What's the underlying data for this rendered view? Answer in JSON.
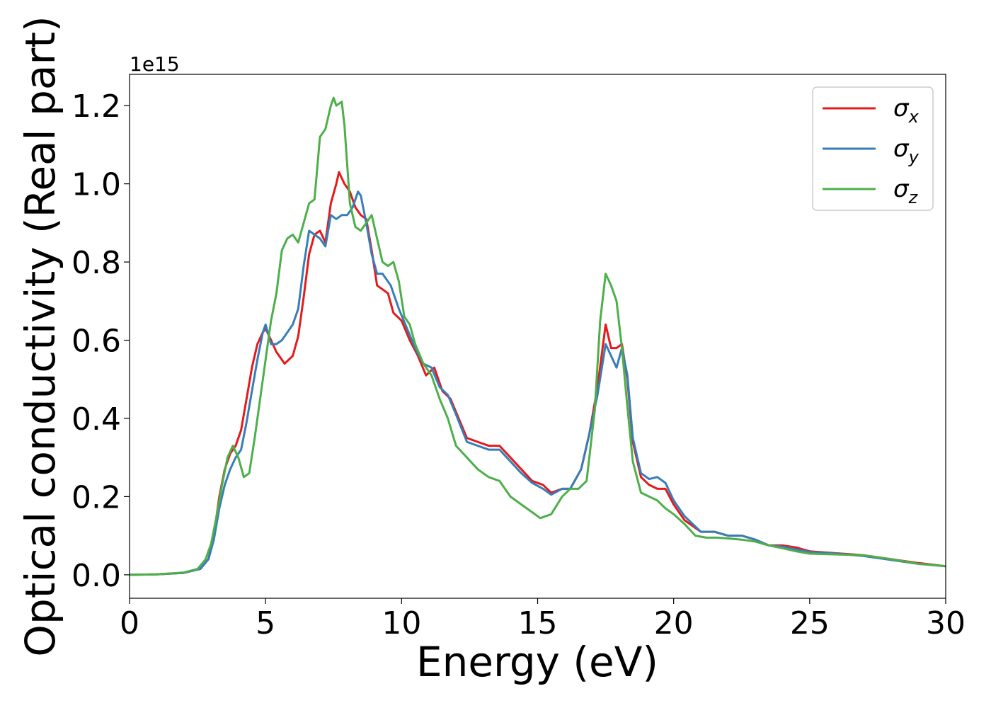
{
  "chart_data": {
    "type": "line",
    "title": "",
    "xlabel": "Energy (eV)",
    "ylabel": "Optical conductivity (Real part)",
    "y_offset_text": "1e15",
    "xlim": [
      0,
      30
    ],
    "ylim": [
      -0.06,
      1.28
    ],
    "x_ticks": [
      0,
      5,
      10,
      15,
      20,
      25,
      30
    ],
    "x_tick_labels": [
      "0",
      "5",
      "10",
      "15",
      "20",
      "25",
      "30"
    ],
    "y_ticks": [
      0.0,
      0.2,
      0.4,
      0.6,
      0.8,
      1.0,
      1.2
    ],
    "y_tick_labels": [
      "0.0",
      "0.2",
      "0.4",
      "0.6",
      "0.8",
      "1.0",
      "1.2"
    ],
    "grid": false,
    "legend_position": "top-right",
    "series": [
      {
        "name": "σx",
        "legend_base": "σ",
        "legend_sub": "x",
        "color": "#e41a1c",
        "points": [
          [
            0,
            0
          ],
          [
            1,
            0.001
          ],
          [
            2,
            0.005
          ],
          [
            2.6,
            0.015
          ],
          [
            2.9,
            0.04
          ],
          [
            3.1,
            0.1
          ],
          [
            3.3,
            0.2
          ],
          [
            3.5,
            0.27
          ],
          [
            3.7,
            0.31
          ],
          [
            3.9,
            0.33
          ],
          [
            4.1,
            0.37
          ],
          [
            4.3,
            0.45
          ],
          [
            4.5,
            0.53
          ],
          [
            4.7,
            0.59
          ],
          [
            4.9,
            0.62
          ],
          [
            5.0,
            0.63
          ],
          [
            5.2,
            0.6
          ],
          [
            5.4,
            0.57
          ],
          [
            5.7,
            0.54
          ],
          [
            6.0,
            0.56
          ],
          [
            6.2,
            0.61
          ],
          [
            6.4,
            0.71
          ],
          [
            6.6,
            0.82
          ],
          [
            6.8,
            0.87
          ],
          [
            7.0,
            0.88
          ],
          [
            7.2,
            0.85
          ],
          [
            7.4,
            0.95
          ],
          [
            7.6,
            1.0
          ],
          [
            7.7,
            1.03
          ],
          [
            7.9,
            1.0
          ],
          [
            8.1,
            0.98
          ],
          [
            8.3,
            0.94
          ],
          [
            8.5,
            0.92
          ],
          [
            8.7,
            0.91
          ],
          [
            8.9,
            0.83
          ],
          [
            9.1,
            0.74
          ],
          [
            9.3,
            0.73
          ],
          [
            9.5,
            0.72
          ],
          [
            9.7,
            0.67
          ],
          [
            10.0,
            0.65
          ],
          [
            10.3,
            0.6
          ],
          [
            10.6,
            0.56
          ],
          [
            10.9,
            0.51
          ],
          [
            11.2,
            0.53
          ],
          [
            11.5,
            0.47
          ],
          [
            11.8,
            0.45
          ],
          [
            12.1,
            0.4
          ],
          [
            12.4,
            0.35
          ],
          [
            12.8,
            0.34
          ],
          [
            13.2,
            0.33
          ],
          [
            13.6,
            0.33
          ],
          [
            14.0,
            0.3
          ],
          [
            14.4,
            0.27
          ],
          [
            14.8,
            0.24
          ],
          [
            15.2,
            0.23
          ],
          [
            15.5,
            0.21
          ],
          [
            15.9,
            0.22
          ],
          [
            16.2,
            0.22
          ],
          [
            16.6,
            0.27
          ],
          [
            16.9,
            0.36
          ],
          [
            17.2,
            0.48
          ],
          [
            17.5,
            0.64
          ],
          [
            17.7,
            0.58
          ],
          [
            17.9,
            0.58
          ],
          [
            18.1,
            0.59
          ],
          [
            18.3,
            0.5
          ],
          [
            18.5,
            0.34
          ],
          [
            18.8,
            0.25
          ],
          [
            19.1,
            0.23
          ],
          [
            19.4,
            0.22
          ],
          [
            19.7,
            0.22
          ],
          [
            20.0,
            0.18
          ],
          [
            20.4,
            0.14
          ],
          [
            21.0,
            0.11
          ],
          [
            21.5,
            0.11
          ],
          [
            22.0,
            0.1
          ],
          [
            22.5,
            0.1
          ],
          [
            23.0,
            0.09
          ],
          [
            23.5,
            0.075
          ],
          [
            24.0,
            0.075
          ],
          [
            24.5,
            0.07
          ],
          [
            25.0,
            0.06
          ],
          [
            26.0,
            0.055
          ],
          [
            27.0,
            0.05
          ],
          [
            28.0,
            0.04
          ],
          [
            29.0,
            0.03
          ],
          [
            30.0,
            0.022
          ]
        ]
      },
      {
        "name": "σy",
        "legend_base": "σ",
        "legend_sub": "y",
        "color": "#377eb8",
        "points": [
          [
            0,
            0
          ],
          [
            1,
            0.001
          ],
          [
            2,
            0.005
          ],
          [
            2.6,
            0.015
          ],
          [
            2.9,
            0.04
          ],
          [
            3.1,
            0.09
          ],
          [
            3.3,
            0.17
          ],
          [
            3.5,
            0.23
          ],
          [
            3.7,
            0.27
          ],
          [
            3.9,
            0.3
          ],
          [
            4.1,
            0.32
          ],
          [
            4.3,
            0.39
          ],
          [
            4.5,
            0.47
          ],
          [
            4.7,
            0.55
          ],
          [
            4.9,
            0.62
          ],
          [
            5.0,
            0.64
          ],
          [
            5.2,
            0.59
          ],
          [
            5.4,
            0.59
          ],
          [
            5.6,
            0.6
          ],
          [
            5.8,
            0.62
          ],
          [
            6.0,
            0.64
          ],
          [
            6.2,
            0.68
          ],
          [
            6.4,
            0.79
          ],
          [
            6.6,
            0.88
          ],
          [
            6.8,
            0.87
          ],
          [
            7.0,
            0.86
          ],
          [
            7.2,
            0.84
          ],
          [
            7.4,
            0.92
          ],
          [
            7.6,
            0.91
          ],
          [
            7.8,
            0.92
          ],
          [
            8.0,
            0.92
          ],
          [
            8.2,
            0.94
          ],
          [
            8.4,
            0.98
          ],
          [
            8.5,
            0.97
          ],
          [
            8.7,
            0.9
          ],
          [
            8.9,
            0.82
          ],
          [
            9.1,
            0.77
          ],
          [
            9.3,
            0.77
          ],
          [
            9.6,
            0.74
          ],
          [
            9.9,
            0.68
          ],
          [
            10.2,
            0.63
          ],
          [
            10.5,
            0.58
          ],
          [
            10.8,
            0.54
          ],
          [
            11.1,
            0.53
          ],
          [
            11.4,
            0.48
          ],
          [
            11.7,
            0.46
          ],
          [
            12.0,
            0.41
          ],
          [
            12.4,
            0.34
          ],
          [
            12.8,
            0.33
          ],
          [
            13.2,
            0.32
          ],
          [
            13.6,
            0.32
          ],
          [
            14.0,
            0.29
          ],
          [
            14.4,
            0.26
          ],
          [
            14.8,
            0.235
          ],
          [
            15.2,
            0.22
          ],
          [
            15.5,
            0.205
          ],
          [
            15.9,
            0.22
          ],
          [
            16.2,
            0.22
          ],
          [
            16.6,
            0.27
          ],
          [
            16.9,
            0.36
          ],
          [
            17.2,
            0.46
          ],
          [
            17.5,
            0.59
          ],
          [
            17.7,
            0.56
          ],
          [
            17.9,
            0.53
          ],
          [
            18.1,
            0.58
          ],
          [
            18.3,
            0.51
          ],
          [
            18.5,
            0.35
          ],
          [
            18.8,
            0.26
          ],
          [
            19.1,
            0.245
          ],
          [
            19.4,
            0.25
          ],
          [
            19.7,
            0.235
          ],
          [
            20.0,
            0.19
          ],
          [
            20.4,
            0.15
          ],
          [
            21.0,
            0.11
          ],
          [
            21.5,
            0.11
          ],
          [
            22.0,
            0.1
          ],
          [
            22.5,
            0.1
          ],
          [
            23.0,
            0.09
          ],
          [
            23.5,
            0.075
          ],
          [
            24.0,
            0.072
          ],
          [
            24.5,
            0.065
          ],
          [
            25.0,
            0.058
          ],
          [
            26.0,
            0.054
          ],
          [
            27.0,
            0.048
          ],
          [
            28.0,
            0.038
          ],
          [
            29.0,
            0.028
          ],
          [
            30.0,
            0.022
          ]
        ]
      },
      {
        "name": "σz",
        "legend_base": "σ",
        "legend_sub": "z",
        "color": "#4daf4a",
        "points": [
          [
            0,
            0
          ],
          [
            1,
            0.001
          ],
          [
            2,
            0.006
          ],
          [
            2.5,
            0.015
          ],
          [
            2.8,
            0.04
          ],
          [
            3.0,
            0.08
          ],
          [
            3.2,
            0.15
          ],
          [
            3.4,
            0.23
          ],
          [
            3.6,
            0.3
          ],
          [
            3.8,
            0.33
          ],
          [
            4.0,
            0.3
          ],
          [
            4.2,
            0.25
          ],
          [
            4.4,
            0.26
          ],
          [
            4.6,
            0.35
          ],
          [
            4.8,
            0.45
          ],
          [
            5.0,
            0.55
          ],
          [
            5.2,
            0.65
          ],
          [
            5.4,
            0.72
          ],
          [
            5.6,
            0.83
          ],
          [
            5.8,
            0.86
          ],
          [
            6.0,
            0.87
          ],
          [
            6.2,
            0.85
          ],
          [
            6.4,
            0.9
          ],
          [
            6.6,
            0.95
          ],
          [
            6.8,
            0.96
          ],
          [
            7.0,
            1.12
          ],
          [
            7.2,
            1.14
          ],
          [
            7.4,
            1.2
          ],
          [
            7.5,
            1.22
          ],
          [
            7.6,
            1.2
          ],
          [
            7.8,
            1.21
          ],
          [
            7.9,
            1.15
          ],
          [
            8.1,
            0.95
          ],
          [
            8.3,
            0.89
          ],
          [
            8.5,
            0.88
          ],
          [
            8.7,
            0.9
          ],
          [
            8.9,
            0.92
          ],
          [
            9.1,
            0.86
          ],
          [
            9.3,
            0.8
          ],
          [
            9.5,
            0.79
          ],
          [
            9.7,
            0.8
          ],
          [
            9.9,
            0.75
          ],
          [
            10.1,
            0.66
          ],
          [
            10.3,
            0.64
          ],
          [
            10.5,
            0.59
          ],
          [
            10.8,
            0.54
          ],
          [
            11.1,
            0.51
          ],
          [
            11.4,
            0.45
          ],
          [
            11.7,
            0.4
          ],
          [
            12.0,
            0.33
          ],
          [
            12.4,
            0.3
          ],
          [
            12.8,
            0.27
          ],
          [
            13.2,
            0.25
          ],
          [
            13.6,
            0.24
          ],
          [
            14.0,
            0.2
          ],
          [
            14.4,
            0.18
          ],
          [
            14.8,
            0.16
          ],
          [
            15.1,
            0.145
          ],
          [
            15.5,
            0.155
          ],
          [
            15.9,
            0.2
          ],
          [
            16.2,
            0.22
          ],
          [
            16.5,
            0.22
          ],
          [
            16.8,
            0.24
          ],
          [
            17.1,
            0.42
          ],
          [
            17.3,
            0.65
          ],
          [
            17.5,
            0.77
          ],
          [
            17.7,
            0.74
          ],
          [
            17.9,
            0.7
          ],
          [
            18.1,
            0.58
          ],
          [
            18.3,
            0.43
          ],
          [
            18.5,
            0.29
          ],
          [
            18.8,
            0.21
          ],
          [
            19.1,
            0.2
          ],
          [
            19.4,
            0.19
          ],
          [
            19.7,
            0.17
          ],
          [
            20.0,
            0.155
          ],
          [
            20.4,
            0.13
          ],
          [
            20.8,
            0.1
          ],
          [
            21.2,
            0.095
          ],
          [
            21.6,
            0.095
          ],
          [
            22.0,
            0.093
          ],
          [
            22.5,
            0.09
          ],
          [
            23.0,
            0.085
          ],
          [
            23.5,
            0.075
          ],
          [
            24.0,
            0.068
          ],
          [
            24.5,
            0.06
          ],
          [
            25.0,
            0.054
          ],
          [
            26.0,
            0.052
          ],
          [
            27.0,
            0.05
          ],
          [
            28.0,
            0.04
          ],
          [
            29.0,
            0.028
          ],
          [
            30.0,
            0.022
          ]
        ]
      }
    ]
  }
}
